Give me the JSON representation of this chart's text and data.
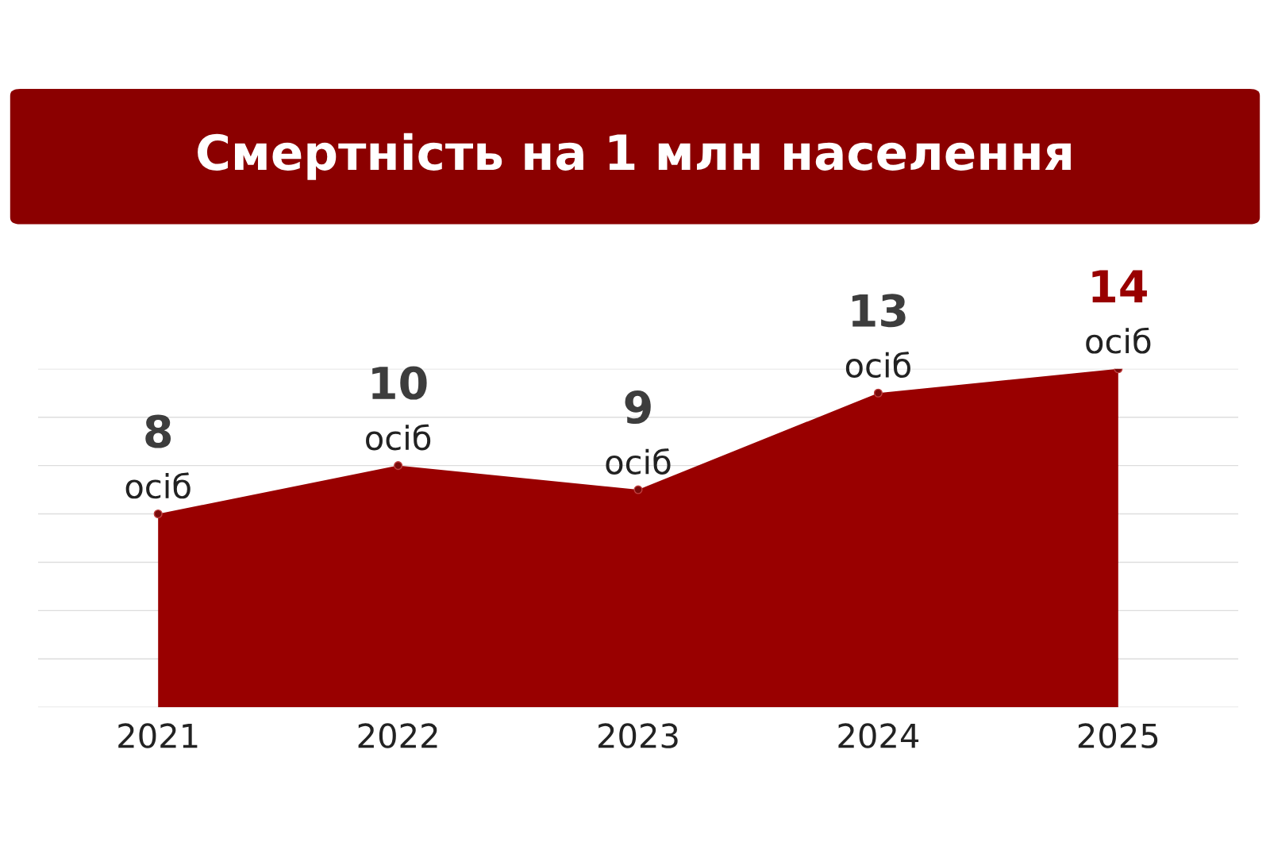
{
  "chart_data": {
    "type": "area",
    "title": "Смертність на 1 млн населення",
    "categories": [
      "2021",
      "2022",
      "2023",
      "2024",
      "2025"
    ],
    "series": [
      {
        "color": "#990000",
        "values": [
          8,
          10,
          9,
          13,
          14
        ],
        "value_labels": [
          "8\nосіб",
          "10\nосіб",
          "9\nосіб",
          "13\nосіб",
          "14\nосіб"
        ]
      }
    ],
    "ylim": [
      0,
      14
    ],
    "yticks": [
      {
        "value": 0,
        "label": null
      },
      {
        "value": 2,
        "label": null
      },
      {
        "value": 4,
        "label": null
      },
      {
        "value": 6,
        "label": null
      },
      {
        "value": 8,
        "label": null
      },
      {
        "value": 10,
        "label": null
      },
      {
        "value": 12,
        "label": null
      },
      {
        "value": 14,
        "label": null
      }
    ],
    "grid": "y",
    "marker": "circle",
    "tick_labels": "x"
  }
}
